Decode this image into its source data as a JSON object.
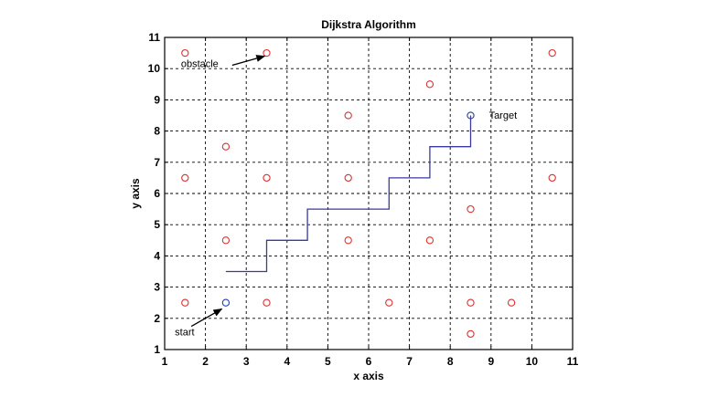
{
  "chart_data": {
    "type": "scatter",
    "title": "Dijkstra Algorithm",
    "xlabel": "x axis",
    "ylabel": "y axis",
    "xlim": [
      1,
      11
    ],
    "ylim": [
      1,
      11
    ],
    "xticks": [
      "1",
      "2",
      "3",
      "4",
      "5",
      "6",
      "7",
      "8",
      "9",
      "10",
      "11"
    ],
    "yticks": [
      "1",
      "2",
      "3",
      "4",
      "5",
      "6",
      "7",
      "8",
      "9",
      "10",
      "11"
    ],
    "grid": true,
    "grid_style": "dashed",
    "colors": {
      "obstacle": "#e03030",
      "start_target": "#2040b0",
      "path": "#3a3aa0",
      "axes": "#000000"
    },
    "series": [
      {
        "kind": "markers",
        "marker": "circle",
        "color": "#e03030",
        "points": [
          [
            1.5,
            10.5
          ],
          [
            3.5,
            10.5
          ],
          [
            10.5,
            10.5
          ],
          [
            7.5,
            9.5
          ],
          [
            5.5,
            8.5
          ],
          [
            2.5,
            7.5
          ],
          [
            1.5,
            6.5
          ],
          [
            3.5,
            6.5
          ],
          [
            5.5,
            6.5
          ],
          [
            10.5,
            6.5
          ],
          [
            8.5,
            5.5
          ],
          [
            2.5,
            4.5
          ],
          [
            5.5,
            4.5
          ],
          [
            7.5,
            4.5
          ],
          [
            1.5,
            2.5
          ],
          [
            3.5,
            2.5
          ],
          [
            6.5,
            2.5
          ],
          [
            8.5,
            2.5
          ],
          [
            9.5,
            2.5
          ],
          [
            8.5,
            1.5
          ]
        ]
      },
      {
        "kind": "markers",
        "marker": "circle",
        "color": "#2040b0",
        "points": [
          [
            2.5,
            2.5
          ],
          [
            8.5,
            8.5
          ]
        ]
      },
      {
        "kind": "line",
        "color": "#3a3aa0",
        "points": [
          [
            2.5,
            3.5
          ],
          [
            3.5,
            3.5
          ],
          [
            3.5,
            4.5
          ],
          [
            4.5,
            4.5
          ],
          [
            4.5,
            5.5
          ],
          [
            6.5,
            5.5
          ],
          [
            6.5,
            6.5
          ],
          [
            7.5,
            6.5
          ],
          [
            7.5,
            7.5
          ],
          [
            8.5,
            7.5
          ],
          [
            8.5,
            8.5
          ]
        ]
      }
    ],
    "annotations": [
      {
        "text": "obstacle",
        "x": 1.4,
        "y": 10.05,
        "arrow_to": [
          3.45,
          10.4
        ]
      },
      {
        "text": "Target",
        "x": 8.95,
        "y": 8.4,
        "arrow_to": null
      },
      {
        "text": "start",
        "x": 1.25,
        "y": 1.45,
        "arrow_to": [
          2.4,
          2.3
        ]
      }
    ]
  }
}
